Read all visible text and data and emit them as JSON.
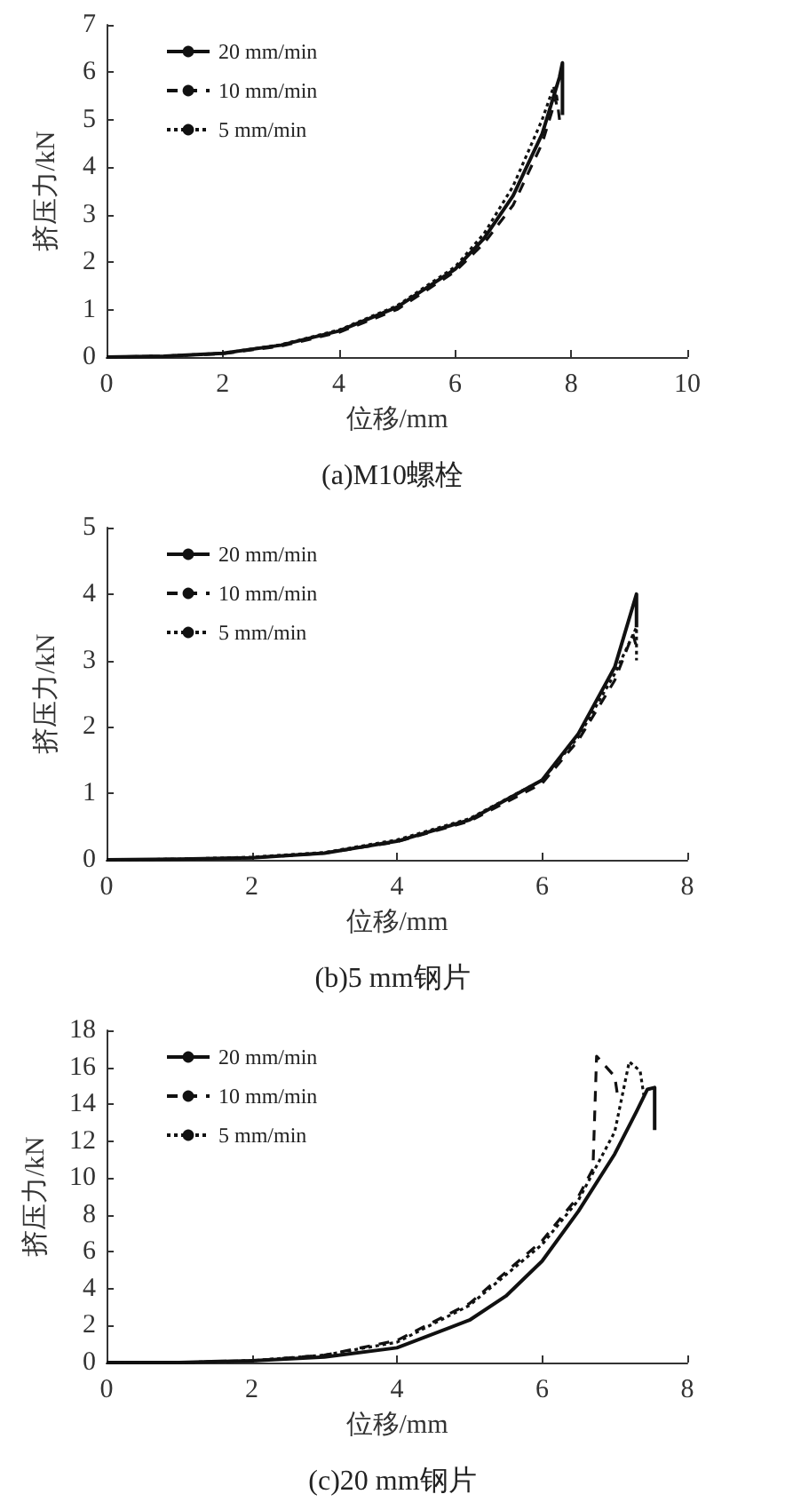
{
  "chart_data": [
    {
      "type": "line",
      "title": "(a)M10螺栓",
      "xlabel": "位移/mm",
      "ylabel": "挤压力/kN",
      "xlim": [
        0,
        10
      ],
      "xticks": [
        0,
        2,
        4,
        6,
        8,
        10
      ],
      "ylim": [
        0,
        7
      ],
      "yticks": [
        0,
        1,
        2,
        3,
        4,
        5,
        6,
        7
      ],
      "grid": false,
      "legend": "top left",
      "marker": "none",
      "series": [
        {
          "name": "20 mm/min",
          "color": "#111111",
          "line_style": "solid",
          "x": [
            0,
            1,
            2,
            3,
            4,
            5,
            6,
            6.5,
            7,
            7.5,
            7.8,
            7.85,
            7.85
          ],
          "values": [
            0,
            0.02,
            0.08,
            0.25,
            0.55,
            1.05,
            1.85,
            2.5,
            3.4,
            4.7,
            5.9,
            6.2,
            5.1
          ]
        },
        {
          "name": "10 mm/min",
          "color": "#111111",
          "line_style": "dashed",
          "x": [
            0,
            1,
            2,
            3,
            4,
            5,
            6,
            6.5,
            7,
            7.5,
            7.75,
            7.8
          ],
          "values": [
            0,
            0.02,
            0.07,
            0.23,
            0.52,
            1.0,
            1.8,
            2.4,
            3.2,
            4.5,
            5.5,
            5.0
          ]
        },
        {
          "name": "5 mm/min",
          "color": "#111111",
          "line_style": "dotted",
          "x": [
            0,
            1,
            2,
            3,
            4,
            5,
            6,
            6.5,
            7,
            7.5,
            7.7,
            7.75
          ],
          "values": [
            0,
            0.02,
            0.08,
            0.26,
            0.57,
            1.08,
            1.9,
            2.6,
            3.6,
            5.0,
            5.7,
            5.3
          ]
        }
      ]
    },
    {
      "type": "line",
      "title": "(b)5 mm钢片",
      "xlabel": "位移/mm",
      "ylabel": "挤压力/kN",
      "xlim": [
        0,
        8
      ],
      "xticks": [
        0,
        2,
        4,
        6,
        8
      ],
      "ylim": [
        0,
        5
      ],
      "yticks": [
        0,
        1,
        2,
        3,
        4,
        5
      ],
      "grid": false,
      "legend": "top left",
      "marker": "none",
      "series": [
        {
          "name": "20 mm/min",
          "color": "#111111",
          "line_style": "solid",
          "x": [
            0,
            1,
            2,
            3,
            4,
            5,
            6,
            6.5,
            7,
            7.3,
            7.3
          ],
          "values": [
            0,
            0.01,
            0.03,
            0.1,
            0.28,
            0.6,
            1.2,
            1.9,
            2.9,
            4.0,
            3.5
          ]
        },
        {
          "name": "10 mm/min",
          "color": "#111111",
          "line_style": "dashed",
          "x": [
            0,
            1,
            2,
            3,
            4,
            5,
            6,
            6.5,
            7,
            7.25,
            7.3
          ],
          "values": [
            0,
            0.01,
            0.03,
            0.1,
            0.27,
            0.58,
            1.15,
            1.8,
            2.7,
            3.4,
            3.2
          ]
        },
        {
          "name": "5 mm/min",
          "color": "#111111",
          "line_style": "dotted",
          "x": [
            0,
            1,
            2,
            3,
            4,
            5,
            6,
            6.5,
            7,
            7.3,
            7.3
          ],
          "values": [
            0,
            0.01,
            0.04,
            0.11,
            0.3,
            0.62,
            1.2,
            1.85,
            2.8,
            3.5,
            3.0
          ]
        }
      ]
    },
    {
      "type": "line",
      "title": "(c)20 mm钢片",
      "xlabel": "位移/mm",
      "ylabel": "挤压力/kN",
      "xlim": [
        0,
        8
      ],
      "xticks": [
        0,
        2,
        4,
        6,
        8
      ],
      "ylim": [
        0,
        18
      ],
      "yticks": [
        0,
        2,
        4,
        6,
        8,
        10,
        12,
        14,
        16,
        18
      ],
      "grid": false,
      "legend": "top left",
      "marker": "none",
      "series": [
        {
          "name": "20 mm/min",
          "color": "#111111",
          "line_style": "solid",
          "x": [
            0,
            1,
            2,
            3,
            4,
            5,
            5.5,
            6,
            6.5,
            7,
            7.3,
            7.45,
            7.55,
            7.55
          ],
          "values": [
            0,
            0,
            0.1,
            0.3,
            0.8,
            2.3,
            3.6,
            5.5,
            8.2,
            11.3,
            13.6,
            14.8,
            14.9,
            12.6
          ]
        },
        {
          "name": "10 mm/min",
          "color": "#111111",
          "line_style": "dashed",
          "x": [
            0,
            1,
            2,
            3,
            4,
            5,
            6,
            6.5,
            6.7,
            6.75,
            7.0,
            7.05
          ],
          "values": [
            0,
            0,
            0.1,
            0.4,
            1.2,
            3.2,
            6.6,
            9.0,
            10.5,
            16.6,
            15.5,
            14.2
          ]
        },
        {
          "name": "5 mm/min",
          "color": "#111111",
          "line_style": "dotted",
          "x": [
            0,
            1,
            2,
            3,
            4,
            5,
            6,
            6.5,
            7,
            7.2,
            7.35,
            7.4
          ],
          "values": [
            0,
            0,
            0.1,
            0.4,
            1.1,
            3.1,
            6.4,
            8.8,
            12.5,
            16.3,
            15.8,
            14.5
          ]
        }
      ]
    }
  ]
}
